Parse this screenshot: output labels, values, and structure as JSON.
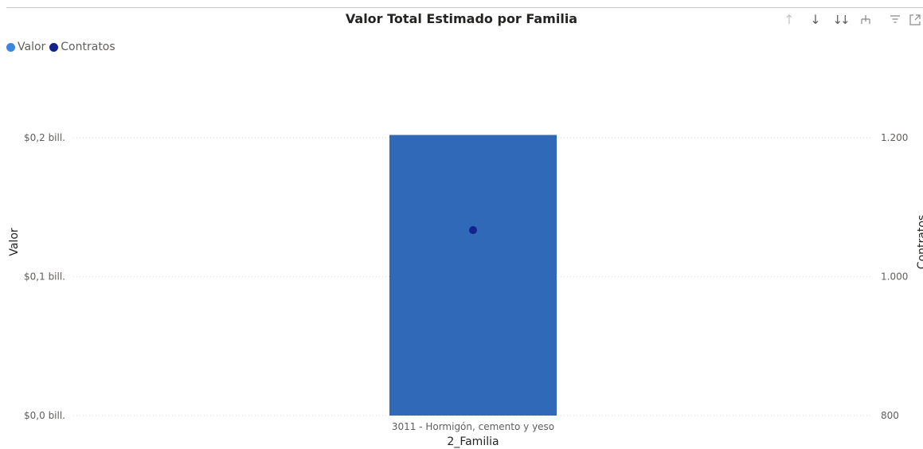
{
  "chart_data": {
    "type": "bar",
    "title": "Valor Total Estimado por Familia",
    "xlabel": "2_Familia",
    "ylabel": "Valor",
    "y2label": "Contratos",
    "categories": [
      "3011 - Hormigón, cemento y yeso"
    ],
    "series": [
      {
        "name": "Valor",
        "type": "bar",
        "axis": "left",
        "values": [
          0.202
        ],
        "color": "#3069b8"
      },
      {
        "name": "Contratos",
        "type": "point",
        "axis": "right",
        "values": [
          1067
        ],
        "color": "#14238c"
      }
    ],
    "ylim": [
      0,
      0.2
    ],
    "y2lim": [
      800,
      1200
    ],
    "yticks": [
      {
        "value": 0,
        "label": "$0,0 bill."
      },
      {
        "value": 0.1,
        "label": "$0,1 bill."
      },
      {
        "value": 0.2,
        "label": "$0,2 bill."
      }
    ],
    "y2ticks": [
      {
        "value": 800,
        "label": "800"
      },
      {
        "value": 1000,
        "label": "1.000"
      },
      {
        "value": 1200,
        "label": "1.200"
      }
    ],
    "grid": true,
    "legend_position": "top-left"
  },
  "legend": {
    "items": [
      {
        "label": "Valor",
        "color": "#3b86e0"
      },
      {
        "label": "Contratos",
        "color": "#14238c"
      }
    ]
  },
  "toolbar": {
    "icons": [
      "arrow-up-icon",
      "arrow-down-icon",
      "double-arrow-down-icon",
      "hierarchy-expand-icon",
      "filter-icon",
      "focus-mode-icon"
    ]
  }
}
